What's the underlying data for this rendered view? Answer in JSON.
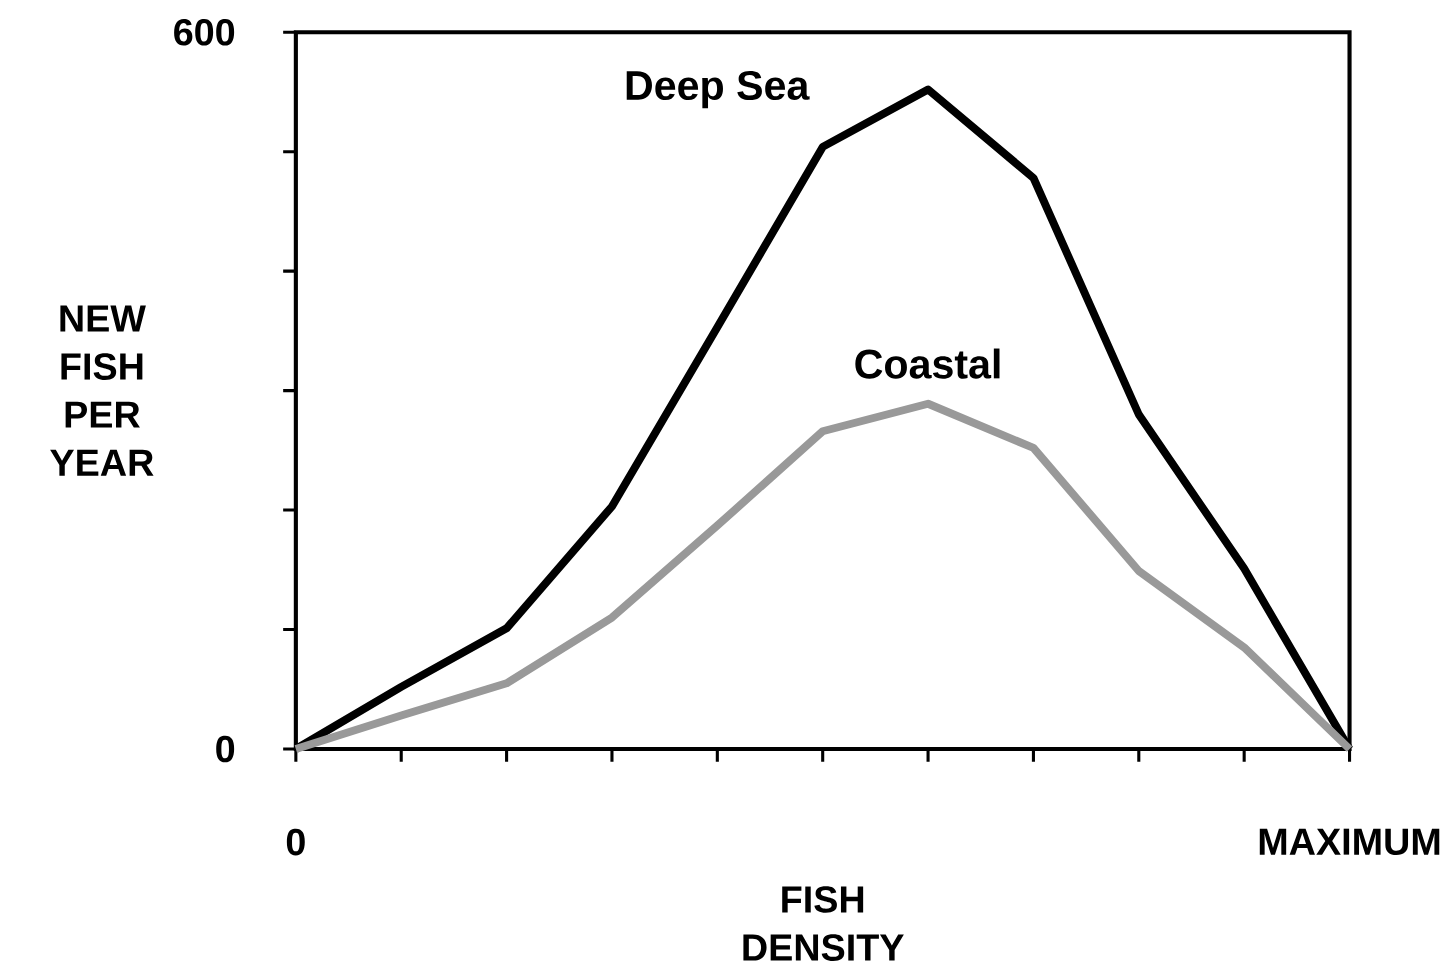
{
  "chart_data": {
    "type": "line",
    "xlabel": "FISH DENSITY",
    "ylabel": "NEW FISH PER YEAR",
    "categories": [
      "0",
      null,
      null,
      null,
      null,
      null,
      null,
      null,
      null,
      null,
      "MAXIMUM"
    ],
    "ylim": [
      0,
      600
    ],
    "yticks": [
      0,
      {
        "value": 100,
        "label": null
      },
      {
        "value": 200,
        "label": null
      },
      {
        "value": 300,
        "label": null
      },
      {
        "value": 400,
        "label": null
      },
      {
        "value": 500,
        "label": null
      },
      600
    ],
    "series": [
      {
        "name": "Deep Sea",
        "color": "#000000",
        "values": [
          0,
          52,
          101,
          203,
          353,
          504,
          552,
          478,
          280,
          151,
          0
        ]
      },
      {
        "name": "Coastal",
        "color": "#999999",
        "values": [
          0,
          28,
          55,
          110,
          187,
          266,
          289,
          252,
          149,
          85,
          0
        ]
      }
    ],
    "grid": false,
    "legend": false
  }
}
